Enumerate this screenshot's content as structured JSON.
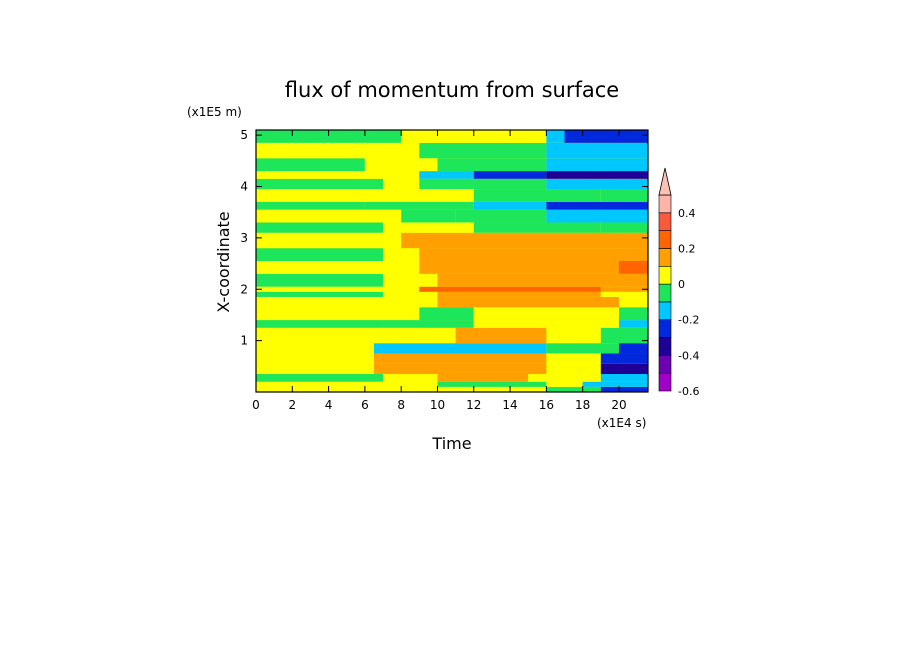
{
  "chart_data": {
    "type": "heatmap",
    "title": "flux of momentum from surface",
    "xlabel": "Time",
    "ylabel": "X-coordinate",
    "x_unit": "(x1E4 s)",
    "y_unit": "(x1E5 m)",
    "xlim": [
      0,
      21.6
    ],
    "ylim": [
      0,
      5.1
    ],
    "x_ticks": [
      "0",
      "2",
      "4",
      "6",
      "8",
      "10",
      "12",
      "14",
      "16",
      "18",
      "20"
    ],
    "x_tick_values": [
      0,
      2,
      4,
      6,
      8,
      10,
      12,
      14,
      16,
      18,
      20
    ],
    "y_ticks": [
      "1",
      "2",
      "3",
      "4",
      "5"
    ],
    "y_tick_values": [
      1,
      2,
      3,
      4,
      5
    ],
    "colorbar": {
      "levels": [
        -0.6,
        -0.5,
        -0.4,
        -0.3,
        -0.2,
        -0.1,
        0,
        0.1,
        0.2,
        0.3,
        0.4,
        0.5
      ],
      "colors": [
        "#a000c8",
        "#6e00b4",
        "#1e0096",
        "#0028dc",
        "#00c8ff",
        "#1ee65a",
        "#ffff00",
        "#ffa000",
        "#ff6400",
        "#fa5a3c",
        "#ffb4aa"
      ],
      "over_color": "#ffc0b4",
      "tick_labels": [
        "-0.6",
        "-0.4",
        "-0.2",
        "0",
        "0.2",
        "0.4"
      ],
      "tick_values": [
        -0.6,
        -0.4,
        -0.2,
        0,
        0.2,
        0.4
      ]
    },
    "field_bands": [
      {
        "y": [
          0.0,
          0.1
        ],
        "segments": [
          [
            0,
            0.05
          ],
          [
            7,
            0.03
          ],
          [
            16,
            -0.05
          ],
          [
            19,
            -0.25
          ]
        ]
      },
      {
        "y": [
          0.1,
          0.2
        ],
        "segments": [
          [
            0,
            0.05
          ],
          [
            10,
            -0.05
          ],
          [
            16,
            0.05
          ],
          [
            18,
            -0.15
          ]
        ]
      },
      {
        "y": [
          0.2,
          0.35
        ],
        "segments": [
          [
            0,
            -0.05
          ],
          [
            7,
            0.05
          ],
          [
            10,
            0.15
          ],
          [
            15,
            0.05
          ],
          [
            19,
            -0.15
          ]
        ]
      },
      {
        "y": [
          0.35,
          0.55
        ],
        "segments": [
          [
            0,
            0.05
          ],
          [
            6.5,
            0.15
          ],
          [
            16,
            0.05
          ],
          [
            19,
            -0.35
          ]
        ]
      },
      {
        "y": [
          0.55,
          0.75
        ],
        "segments": [
          [
            0,
            0.05
          ],
          [
            6.5,
            0.15
          ],
          [
            10,
            0.15
          ],
          [
            16,
            0.05
          ],
          [
            19,
            -0.25
          ]
        ]
      },
      {
        "y": [
          0.75,
          0.95
        ],
        "segments": [
          [
            0,
            0.05
          ],
          [
            6.5,
            -0.15
          ],
          [
            16,
            -0.05
          ],
          [
            20,
            -0.25
          ]
        ]
      },
      {
        "y": [
          0.95,
          1.25
        ],
        "segments": [
          [
            0,
            0.05
          ],
          [
            7,
            0.05
          ],
          [
            11,
            0.15
          ],
          [
            16,
            0.05
          ],
          [
            19,
            -0.05
          ]
        ]
      },
      {
        "y": [
          1.25,
          1.4
        ],
        "segments": [
          [
            0,
            -0.05
          ],
          [
            7,
            -0.05
          ],
          [
            12,
            0.05
          ],
          [
            20,
            -0.15
          ]
        ]
      },
      {
        "y": [
          1.4,
          1.65
        ],
        "segments": [
          [
            0,
            0.05
          ],
          [
            9,
            -0.05
          ],
          [
            12,
            0.05
          ],
          [
            16,
            0.05
          ],
          [
            20,
            -0.05
          ]
        ]
      },
      {
        "y": [
          1.65,
          1.85
        ],
        "segments": [
          [
            0,
            0.05
          ],
          [
            9,
            0.05
          ],
          [
            10,
            0.15
          ],
          [
            20,
            0.05
          ]
        ]
      },
      {
        "y": [
          1.85,
          1.95
        ],
        "segments": [
          [
            0,
            -0.05
          ],
          [
            7,
            0.05
          ],
          [
            10,
            0.15
          ],
          [
            19,
            0.05
          ]
        ]
      },
      {
        "y": [
          1.95,
          2.05
        ],
        "segments": [
          [
            0,
            0.05
          ],
          [
            9,
            0.25
          ],
          [
            19,
            0.15
          ]
        ]
      },
      {
        "y": [
          2.05,
          2.3
        ],
        "segments": [
          [
            0,
            -0.05
          ],
          [
            7,
            0.05
          ],
          [
            10,
            0.15
          ],
          [
            20,
            0.15
          ]
        ]
      },
      {
        "y": [
          2.3,
          2.55
        ],
        "segments": [
          [
            0,
            0.05
          ],
          [
            9,
            0.15
          ],
          [
            20,
            0.25
          ]
        ]
      },
      {
        "y": [
          2.55,
          2.8
        ],
        "segments": [
          [
            0,
            -0.05
          ],
          [
            7,
            0.05
          ],
          [
            9,
            0.15
          ],
          [
            20,
            0.15
          ]
        ]
      },
      {
        "y": [
          2.8,
          3.1
        ],
        "segments": [
          [
            0,
            0.05
          ],
          [
            8,
            0.15
          ],
          [
            20,
            0.15
          ]
        ]
      },
      {
        "y": [
          3.1,
          3.3
        ],
        "segments": [
          [
            0,
            -0.05
          ],
          [
            7,
            0.05
          ],
          [
            12,
            -0.05
          ],
          [
            19,
            -0.05
          ]
        ]
      },
      {
        "y": [
          3.3,
          3.55
        ],
        "segments": [
          [
            0,
            0.05
          ],
          [
            8,
            -0.05
          ],
          [
            11,
            -0.05
          ],
          [
            16,
            -0.15
          ]
        ]
      },
      {
        "y": [
          3.55,
          3.7
        ],
        "segments": [
          [
            0,
            -0.05
          ],
          [
            6,
            -0.05
          ],
          [
            12,
            -0.15
          ],
          [
            16,
            -0.25
          ]
        ]
      },
      {
        "y": [
          3.7,
          3.95
        ],
        "segments": [
          [
            0,
            0.05
          ],
          [
            8,
            0.05
          ],
          [
            12,
            -0.05
          ],
          [
            19,
            -0.05
          ]
        ]
      },
      {
        "y": [
          3.95,
          4.15
        ],
        "segments": [
          [
            0,
            -0.05
          ],
          [
            7,
            0.05
          ],
          [
            9,
            -0.05
          ],
          [
            16,
            -0.15
          ]
        ]
      },
      {
        "y": [
          4.15,
          4.3
        ],
        "segments": [
          [
            0,
            0.05
          ],
          [
            9,
            -0.15
          ],
          [
            12,
            -0.25
          ],
          [
            16,
            -0.35
          ]
        ]
      },
      {
        "y": [
          4.3,
          4.55
        ],
        "segments": [
          [
            0,
            -0.05
          ],
          [
            6,
            0.05
          ],
          [
            10,
            -0.05
          ],
          [
            16,
            -0.15
          ]
        ]
      },
      {
        "y": [
          4.55,
          4.85
        ],
        "segments": [
          [
            0,
            0.05
          ],
          [
            6.5,
            0.05
          ],
          [
            9,
            -0.05
          ],
          [
            16,
            -0.15
          ]
        ]
      },
      {
        "y": [
          4.85,
          5.1
        ],
        "segments": [
          [
            0,
            -0.05
          ],
          [
            8,
            0.05
          ],
          [
            16,
            -0.15
          ],
          [
            17,
            -0.25
          ]
        ]
      }
    ]
  }
}
